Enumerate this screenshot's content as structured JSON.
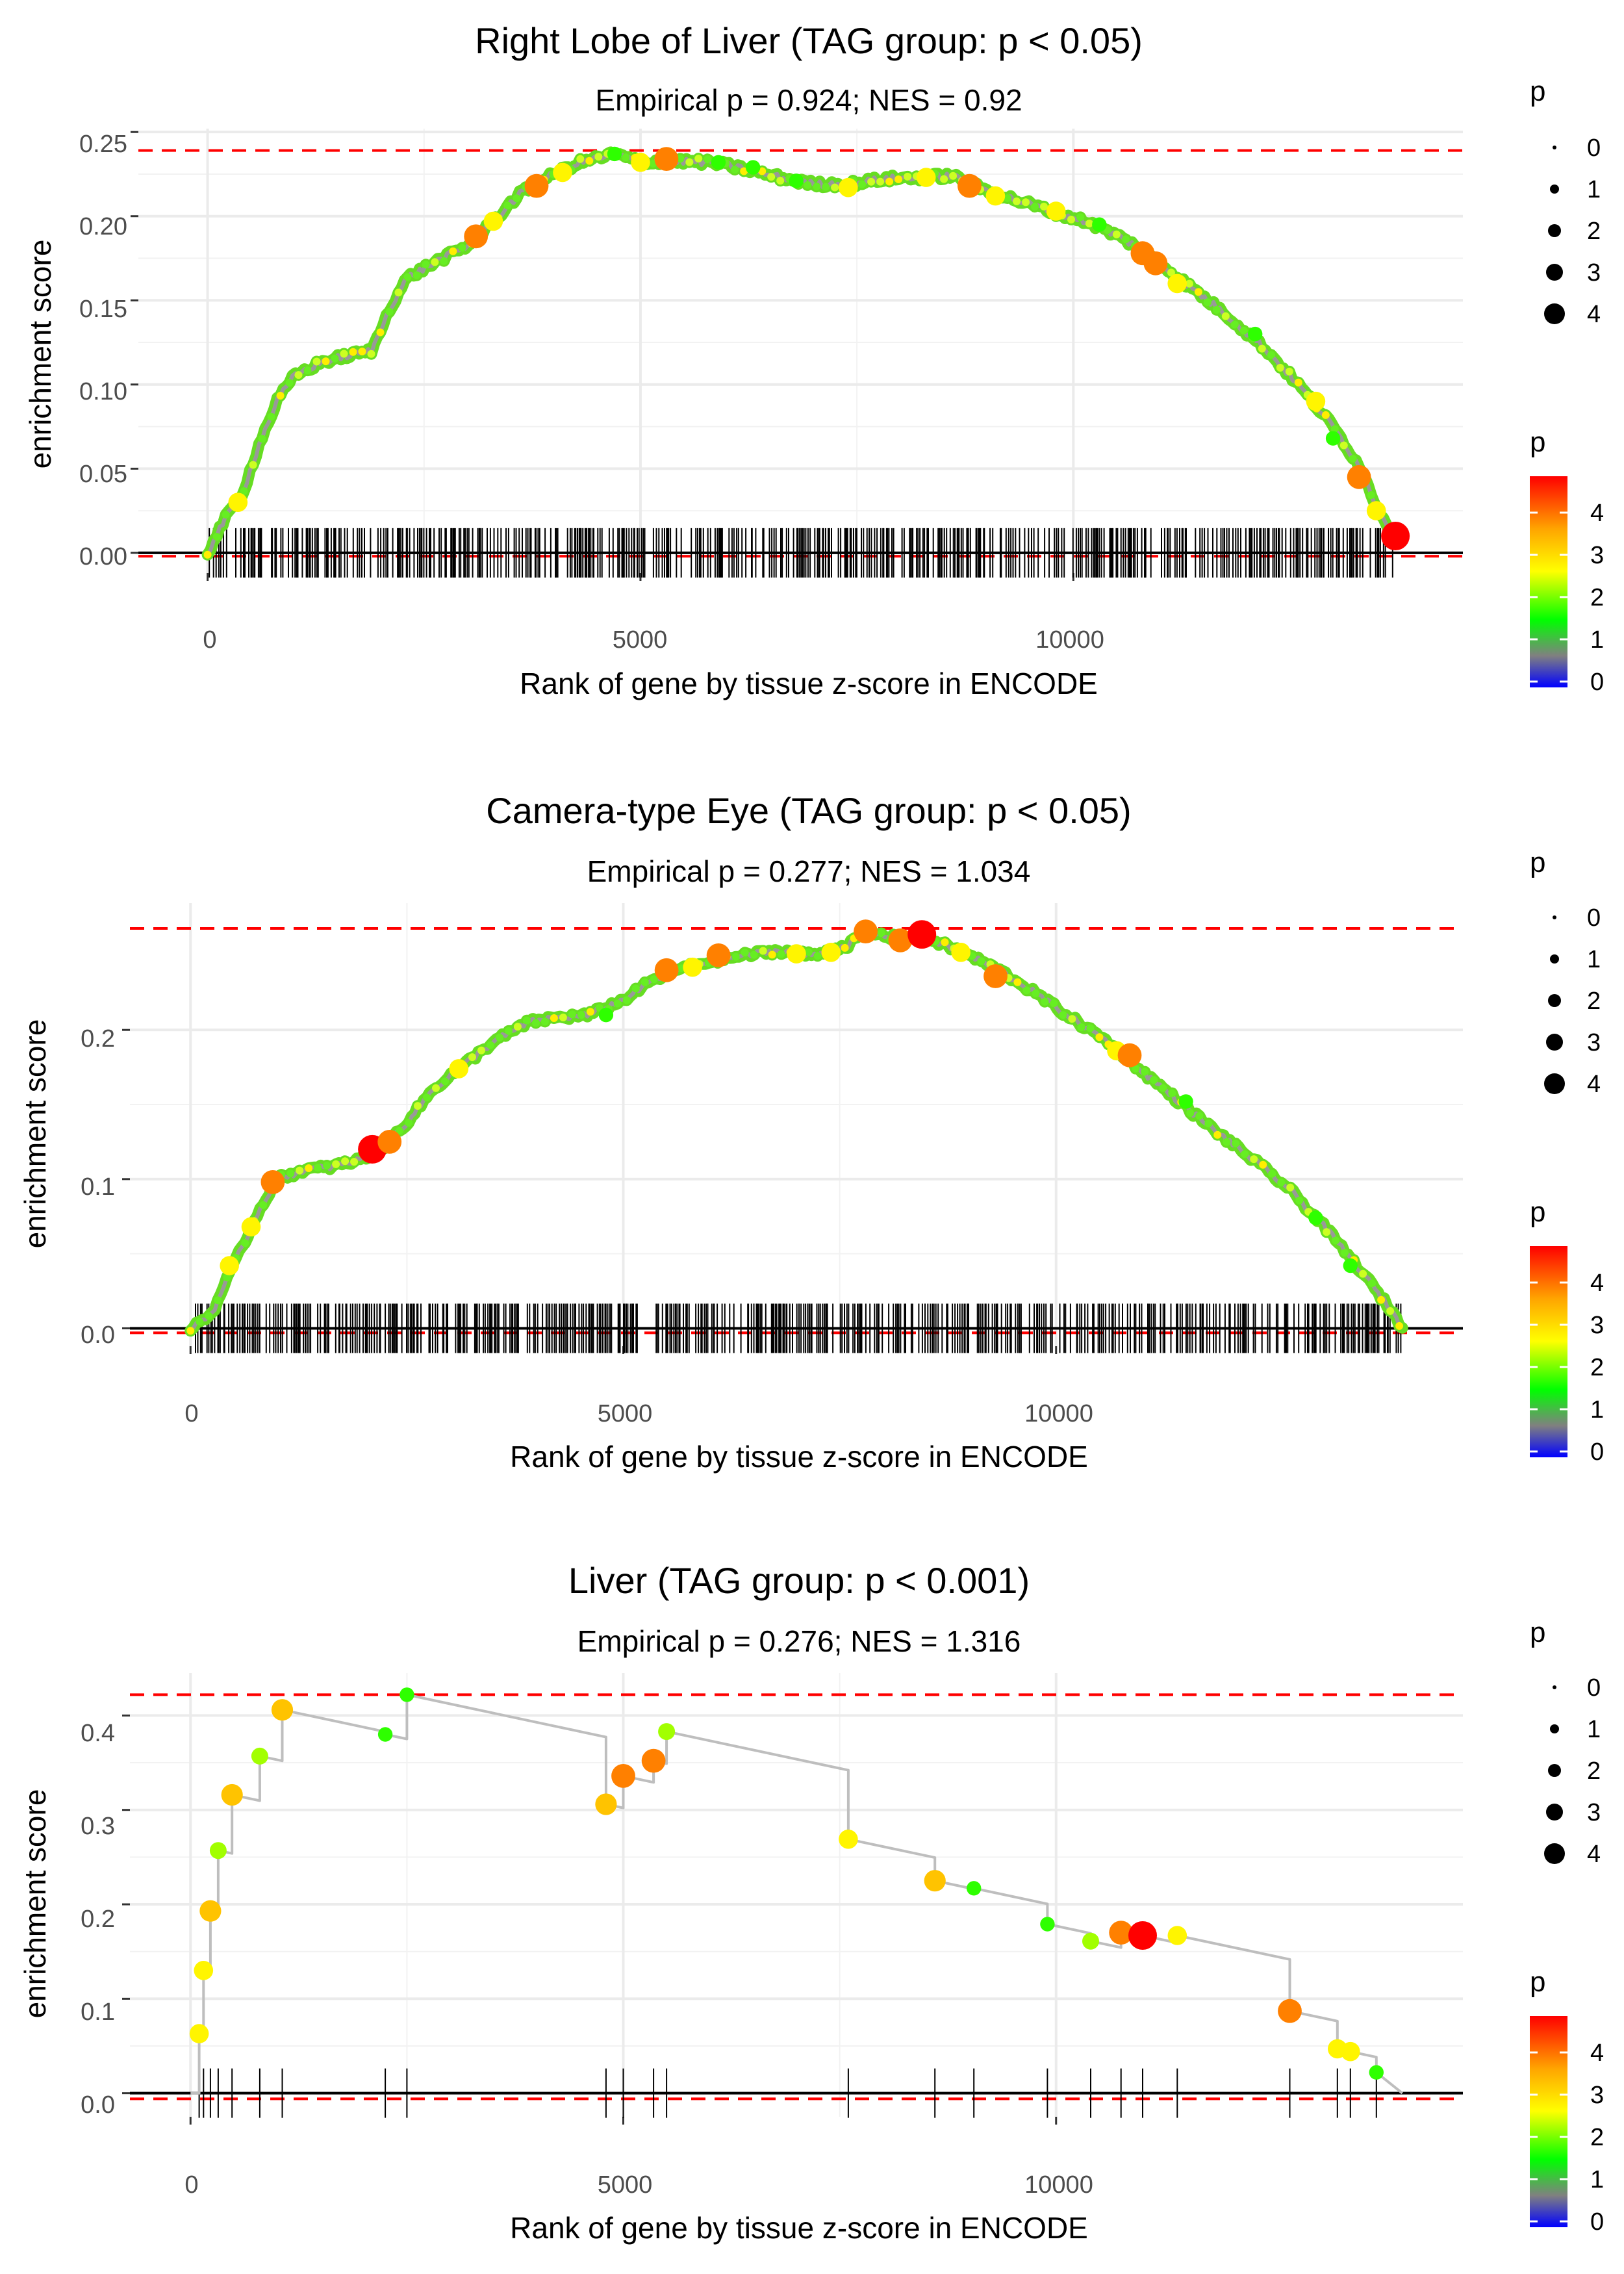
{
  "chart_data": [
    {
      "type": "line",
      "title": "Right Lobe of Liver (TAG group: p < 0.05)",
      "subtitle": "Empirical p = 0.924; NES = 0.92",
      "xlabel": "Rank of gene by tissue z-score in ENCODE",
      "ylabel": "enrichment score",
      "xlim": [
        -800,
        14500
      ],
      "ylim": [
        -0.012,
        0.252
      ],
      "xticks": [
        0,
        5000,
        10000
      ],
      "yticks": [
        0,
        0.05,
        0.1,
        0.15,
        0.2,
        0.25
      ],
      "ytick_labels": [
        "0.00",
        "0.05",
        "0.10",
        "0.15",
        "0.20",
        "0.25"
      ],
      "max_es": 0.239,
      "min_es": -0.002,
      "rug": {
        "from": 0,
        "to": 13700,
        "density": "dense"
      },
      "curve": [
        [
          0,
          0
        ],
        [
          200,
          0.02
        ],
        [
          400,
          0.035
        ],
        [
          600,
          0.065
        ],
        [
          800,
          0.09
        ],
        [
          1000,
          0.105
        ],
        [
          1300,
          0.113
        ],
        [
          1600,
          0.117
        ],
        [
          1900,
          0.12
        ],
        [
          2100,
          0.145
        ],
        [
          2300,
          0.163
        ],
        [
          2600,
          0.172
        ],
        [
          3000,
          0.182
        ],
        [
          3300,
          0.197
        ],
        [
          3600,
          0.213
        ],
        [
          4000,
          0.225
        ],
        [
          4300,
          0.232
        ],
        [
          4700,
          0.237
        ],
        [
          5000,
          0.232
        ],
        [
          5300,
          0.233
        ],
        [
          5800,
          0.232
        ],
        [
          6200,
          0.228
        ],
        [
          6600,
          0.223
        ],
        [
          7000,
          0.219
        ],
        [
          7400,
          0.219
        ],
        [
          7800,
          0.222
        ],
        [
          8200,
          0.223
        ],
        [
          8600,
          0.224
        ],
        [
          9000,
          0.215
        ],
        [
          9500,
          0.207
        ],
        [
          9800,
          0.202
        ],
        [
          10200,
          0.196
        ],
        [
          10600,
          0.186
        ],
        [
          11000,
          0.172
        ],
        [
          11400,
          0.156
        ],
        [
          11800,
          0.14
        ],
        [
          12200,
          0.122
        ],
        [
          12600,
          0.1
        ],
        [
          13000,
          0.075
        ],
        [
          13300,
          0.052
        ],
        [
          13500,
          0.028
        ],
        [
          13700,
          0.01
        ]
      ],
      "points": [
        [
          350,
          0.03,
          3
        ],
        [
          3100,
          0.188,
          4
        ],
        [
          3300,
          0.197,
          3
        ],
        [
          3800,
          0.218,
          4
        ],
        [
          4100,
          0.226,
          3
        ],
        [
          4700,
          0.237,
          2
        ],
        [
          5000,
          0.232,
          3
        ],
        [
          5300,
          0.234,
          4
        ],
        [
          5900,
          0.232,
          2
        ],
        [
          6300,
          0.229,
          2
        ],
        [
          6800,
          0.221,
          2
        ],
        [
          7400,
          0.217,
          3
        ],
        [
          8300,
          0.223,
          3
        ],
        [
          8800,
          0.218,
          4
        ],
        [
          9100,
          0.212,
          3
        ],
        [
          9800,
          0.203,
          3
        ],
        [
          10300,
          0.195,
          2
        ],
        [
          10800,
          0.178,
          4
        ],
        [
          10950,
          0.172,
          4
        ],
        [
          11200,
          0.16,
          3
        ],
        [
          12100,
          0.13,
          2
        ],
        [
          12800,
          0.09,
          3
        ],
        [
          13000,
          0.068,
          2
        ],
        [
          13300,
          0.045,
          4
        ],
        [
          13500,
          0.025,
          3
        ],
        [
          13720,
          0.01,
          5
        ]
      ],
      "legend_size": {
        "title": "p",
        "labels": [
          "0",
          "1",
          "2",
          "3",
          "4"
        ]
      },
      "legend_color": {
        "title": "p",
        "labels": [
          "4",
          "3",
          "2",
          "1",
          "0"
        ],
        "colors": [
          "#ff0000",
          "#ffa500",
          "#ffff00",
          "#00ff00",
          "#808080",
          "#0000ff"
        ]
      }
    },
    {
      "type": "line",
      "title": "Camera-type Eye (TAG group: p < 0.05)",
      "subtitle": "Empirical p = 0.277; NES = 1.034",
      "xlabel": "Rank of gene by tissue z-score in ENCODE",
      "ylabel": "enrichment score",
      "xlim": [
        -700,
        14700
      ],
      "ylim": [
        -0.012,
        0.285
      ],
      "xticks": [
        0,
        5000,
        10000
      ],
      "yticks": [
        0,
        0.1,
        0.2
      ],
      "ytick_labels": [
        "0.0",
        "0.1",
        "0.2"
      ],
      "max_es": 0.268,
      "min_es": -0.003,
      "rug": {
        "from": 50,
        "to": 14000,
        "density": "dense"
      },
      "curve": [
        [
          0,
          0
        ],
        [
          250,
          0.01
        ],
        [
          400,
          0.03
        ],
        [
          600,
          0.055
        ],
        [
          800,
          0.08
        ],
        [
          1000,
          0.1
        ],
        [
          1300,
          0.106
        ],
        [
          1600,
          0.108
        ],
        [
          1900,
          0.112
        ],
        [
          2200,
          0.12
        ],
        [
          2500,
          0.138
        ],
        [
          2800,
          0.16
        ],
        [
          3100,
          0.174
        ],
        [
          3500,
          0.192
        ],
        [
          3900,
          0.205
        ],
        [
          4200,
          0.208
        ],
        [
          4600,
          0.21
        ],
        [
          5000,
          0.22
        ],
        [
          5300,
          0.232
        ],
        [
          5600,
          0.24
        ],
        [
          6000,
          0.246
        ],
        [
          6400,
          0.25
        ],
        [
          6800,
          0.253
        ],
        [
          7200,
          0.25
        ],
        [
          7600,
          0.257
        ],
        [
          7800,
          0.266
        ],
        [
          8100,
          0.262
        ],
        [
          8500,
          0.262
        ],
        [
          9000,
          0.25
        ],
        [
          9400,
          0.238
        ],
        [
          9800,
          0.223
        ],
        [
          10200,
          0.207
        ],
        [
          10600,
          0.192
        ],
        [
          11000,
          0.172
        ],
        [
          11400,
          0.153
        ],
        [
          11800,
          0.134
        ],
        [
          12300,
          0.112
        ],
        [
          12700,
          0.093
        ],
        [
          13100,
          0.068
        ],
        [
          13500,
          0.04
        ],
        [
          13900,
          0.01
        ],
        [
          14000,
          0
        ]
      ],
      "points": [
        [
          450,
          0.042,
          3
        ],
        [
          700,
          0.068,
          3
        ],
        [
          950,
          0.098,
          4
        ],
        [
          2100,
          0.12,
          5
        ],
        [
          2300,
          0.125,
          4
        ],
        [
          3100,
          0.174,
          3
        ],
        [
          4800,
          0.21,
          2
        ],
        [
          5500,
          0.24,
          4
        ],
        [
          5800,
          0.242,
          3
        ],
        [
          6100,
          0.25,
          4
        ],
        [
          7000,
          0.251,
          3
        ],
        [
          7400,
          0.252,
          3
        ],
        [
          7800,
          0.266,
          4
        ],
        [
          8200,
          0.26,
          4
        ],
        [
          8450,
          0.264,
          5
        ],
        [
          8900,
          0.252,
          3
        ],
        [
          9300,
          0.236,
          4
        ],
        [
          10700,
          0.186,
          3
        ],
        [
          10850,
          0.183,
          4
        ],
        [
          11500,
          0.152,
          2
        ],
        [
          13000,
          0.074,
          2
        ],
        [
          13400,
          0.042,
          2
        ]
      ],
      "legend_size": {
        "title": "p",
        "labels": [
          "0",
          "1",
          "2",
          "3",
          "4"
        ]
      },
      "legend_color": {
        "title": "p",
        "labels": [
          "4",
          "3",
          "2",
          "1",
          "0"
        ],
        "colors": [
          "#ff0000",
          "#ffa500",
          "#ffff00",
          "#00ff00",
          "#808080",
          "#0000ff"
        ]
      }
    },
    {
      "type": "line",
      "title": "Liver (TAG group: p < 0.001)",
      "subtitle": "Empirical p = 0.276; NES = 1.316",
      "xlabel": "Rank of gene by tissue z-score in ENCODE",
      "ylabel": "enrichment score",
      "xlim": [
        -700,
        14700
      ],
      "ylim": [
        -0.025,
        0.445
      ],
      "xticks": [
        0,
        5000,
        10000
      ],
      "yticks": [
        0,
        0.1,
        0.2,
        0.3,
        0.4
      ],
      "ytick_labels": [
        "0.0",
        "0.1",
        "0.2",
        "0.3",
        "0.4"
      ],
      "max_es": 0.422,
      "min_es": -0.006,
      "hits": [
        [
          100,
          0.063,
          3
        ],
        [
          150,
          0.13,
          3
        ],
        [
          230,
          0.193,
          3.5
        ],
        [
          320,
          0.257,
          2.5
        ],
        [
          480,
          0.316,
          3.5
        ],
        [
          800,
          0.357,
          2.5
        ],
        [
          1060,
          0.406,
          3.5
        ],
        [
          2250,
          0.38,
          2
        ],
        [
          2500,
          0.422,
          2
        ],
        [
          4800,
          0.306,
          3.5
        ],
        [
          5000,
          0.336,
          4
        ],
        [
          5350,
          0.352,
          4
        ],
        [
          5500,
          0.383,
          2.5
        ],
        [
          7600,
          0.269,
          3
        ],
        [
          8600,
          0.225,
          3.5
        ],
        [
          9050,
          0.217,
          2
        ],
        [
          9900,
          0.179,
          2
        ],
        [
          10400,
          0.161,
          2.5
        ],
        [
          10750,
          0.17,
          4
        ],
        [
          11000,
          0.167,
          5
        ],
        [
          11400,
          0.167,
          3
        ],
        [
          12700,
          0.087,
          4
        ],
        [
          13250,
          0.047,
          3
        ],
        [
          13400,
          0.044,
          3
        ],
        [
          13700,
          0.022,
          2
        ]
      ],
      "end": [
        14000,
        0
      ],
      "legend_size": {
        "title": "p",
        "labels": [
          "0",
          "1",
          "2",
          "3",
          "4"
        ]
      },
      "legend_color": {
        "title": "p",
        "labels": [
          "4",
          "3",
          "2",
          "1",
          "0"
        ],
        "colors": [
          "#ff0000",
          "#ffa500",
          "#ffff00",
          "#00ff00",
          "#808080",
          "#0000ff"
        ]
      }
    }
  ]
}
